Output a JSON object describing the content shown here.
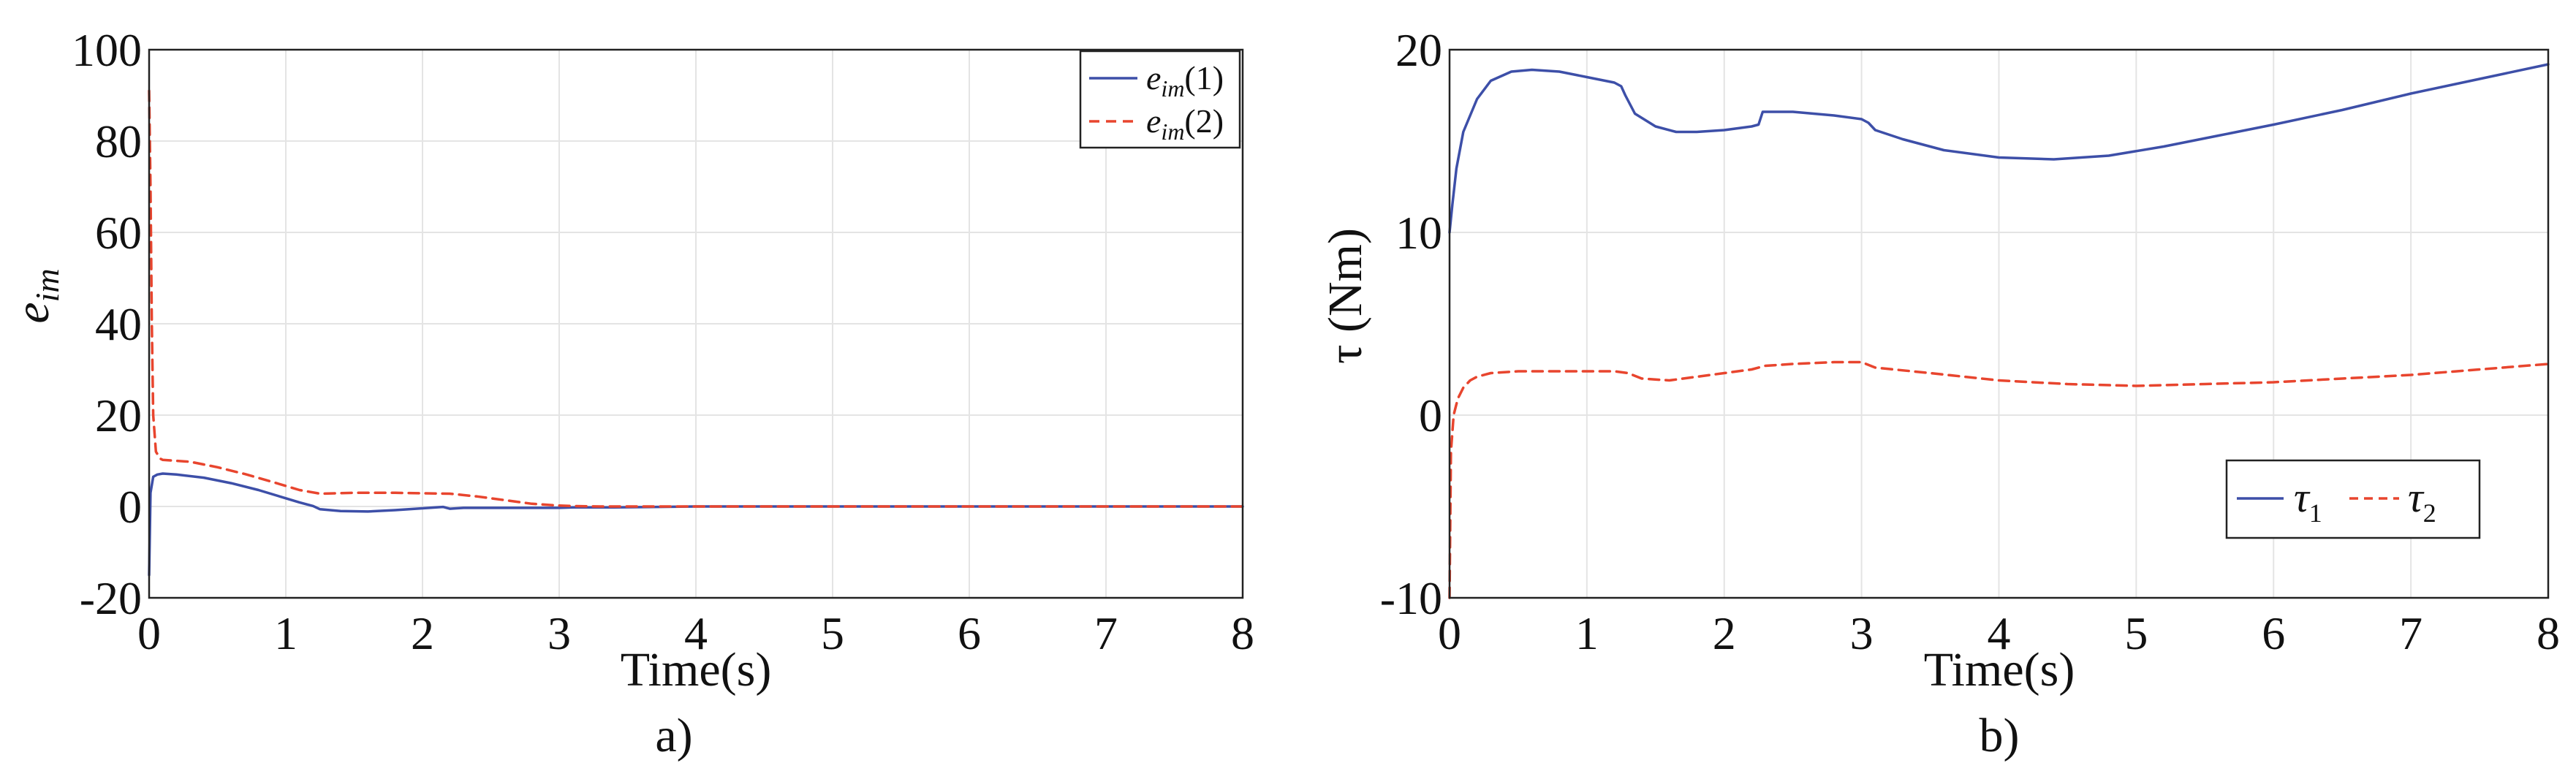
{
  "figure": {
    "captions": [
      "a)",
      "b)"
    ]
  },
  "chart_data": [
    {
      "type": "line",
      "xlabel": "Time(s)",
      "ylabel": {
        "base": "e",
        "sub": "im"
      },
      "xlim": [
        0,
        8
      ],
      "ylim": [
        -20,
        100
      ],
      "xticks": [
        "0",
        "1",
        "2",
        "3",
        "4",
        "5",
        "6",
        "7",
        "8"
      ],
      "yticks": [
        "-20",
        "0",
        "20",
        "40",
        "60",
        "80",
        "100"
      ],
      "grid": true,
      "legend_position": "top-right",
      "series": [
        {
          "name": {
            "base": "e",
            "sub": "im",
            "rest": "(1)"
          },
          "color": "#3d4fa8",
          "style": "solid",
          "x": [
            0,
            0.01,
            0.03,
            0.06,
            0.1,
            0.2,
            0.4,
            0.6,
            0.8,
            1.0,
            1.1,
            1.2,
            1.25,
            1.4,
            1.6,
            1.8,
            2.0,
            2.15,
            2.2,
            2.3,
            2.6,
            3.0,
            3.1,
            3.4,
            4,
            5,
            6,
            7,
            8
          ],
          "values": [
            -15,
            3,
            6.5,
            7,
            7.2,
            7,
            6.3,
            5.1,
            3.6,
            1.8,
            0.9,
            0.1,
            -0.6,
            -1,
            -1.1,
            -0.8,
            -0.4,
            -0.1,
            -0.5,
            -0.3,
            -0.3,
            -0.3,
            -0.2,
            -0.2,
            0,
            0,
            0,
            0,
            0
          ]
        },
        {
          "name": {
            "base": "e",
            "sub": "im",
            "rest": "(2)"
          },
          "color": "#e8452e",
          "style": "dashed",
          "x": [
            0,
            0.01,
            0.02,
            0.03,
            0.05,
            0.08,
            0.1,
            0.3,
            0.5,
            0.7,
            0.9,
            1.1,
            1.25,
            1.5,
            1.8,
            2.0,
            2.2,
            2.4,
            2.6,
            2.8,
            3.0,
            3.1,
            3.3,
            3.5,
            4,
            5,
            6,
            7,
            8
          ],
          "values": [
            91,
            70,
            40,
            20,
            12,
            10.5,
            10.2,
            9.8,
            8.6,
            7.1,
            5.4,
            3.6,
            2.8,
            3,
            3,
            2.9,
            2.8,
            2.2,
            1.4,
            0.6,
            0.2,
            0.1,
            0,
            0,
            0,
            0,
            0,
            0,
            0
          ]
        }
      ]
    },
    {
      "type": "line",
      "xlabel": "Time(s)",
      "ylabel": "τ (Nm)",
      "xlim": [
        0,
        8
      ],
      "ylim": [
        -10,
        20
      ],
      "xticks": [
        "0",
        "1",
        "2",
        "3",
        "4",
        "5",
        "6",
        "7",
        "8"
      ],
      "yticks": [
        "-10",
        "0",
        "10",
        "20"
      ],
      "grid": true,
      "legend_position": "bottom-right",
      "series": [
        {
          "name": {
            "base": "τ",
            "sub": "1"
          },
          "color": "#3d4fa8",
          "style": "solid",
          "x": [
            0,
            0.02,
            0.05,
            0.1,
            0.2,
            0.3,
            0.45,
            0.6,
            0.8,
            1.0,
            1.2,
            1.25,
            1.28,
            1.35,
            1.5,
            1.65,
            1.8,
            2.0,
            2.2,
            2.25,
            2.28,
            2.5,
            2.8,
            3.0,
            3.05,
            3.1,
            3.3,
            3.6,
            4.0,
            4.4,
            4.8,
            5.2,
            5.6,
            6.0,
            6.5,
            7.0,
            7.5,
            8.0
          ],
          "values": [
            10,
            11.5,
            13.5,
            15.5,
            17.3,
            18.3,
            18.8,
            18.9,
            18.8,
            18.5,
            18.2,
            18,
            17.5,
            16.5,
            15.8,
            15.5,
            15.5,
            15.6,
            15.8,
            15.9,
            16.6,
            16.6,
            16.4,
            16.2,
            16,
            15.6,
            15.1,
            14.5,
            14.1,
            14,
            14.2,
            14.7,
            15.3,
            15.9,
            16.7,
            17.6,
            18.4,
            19.2
          ]
        },
        {
          "name": {
            "base": "τ",
            "sub": "2"
          },
          "color": "#e8452e",
          "style": "dashed",
          "x": [
            0,
            0.01,
            0.03,
            0.06,
            0.1,
            0.15,
            0.2,
            0.3,
            0.5,
            0.8,
            1.0,
            1.2,
            1.3,
            1.4,
            1.6,
            1.8,
            2.0,
            2.2,
            2.3,
            2.5,
            2.8,
            3.0,
            3.1,
            3.5,
            4.0,
            4.5,
            5.0,
            5.5,
            6.0,
            6.5,
            7.0,
            7.5,
            8.0
          ],
          "values": [
            -10,
            -2,
            0,
            0.9,
            1.5,
            1.9,
            2.1,
            2.3,
            2.4,
            2.4,
            2.4,
            2.4,
            2.3,
            2,
            1.9,
            2.1,
            2.3,
            2.5,
            2.7,
            2.8,
            2.9,
            2.9,
            2.6,
            2.3,
            1.9,
            1.7,
            1.6,
            1.7,
            1.8,
            2,
            2.2,
            2.5,
            2.8
          ]
        }
      ]
    }
  ]
}
